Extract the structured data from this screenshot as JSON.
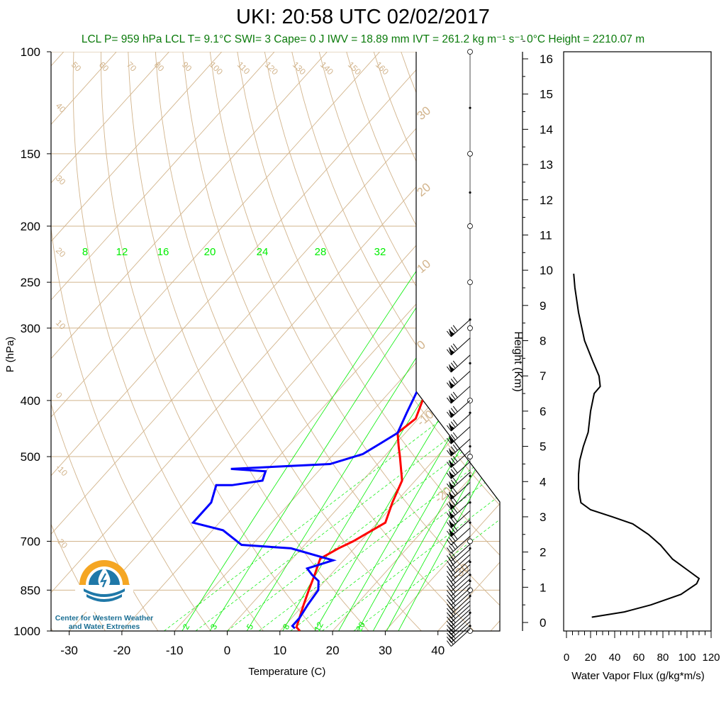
{
  "title": "UKI: 20:58 UTC 02/02/2017",
  "subtitle": "LCL P= 959 hPa  LCL T= 9.1°C  SWI= 3  Cape= 0 J  IWV = 18.89 mm  IVT = 261.2 kg m⁻¹ s⁻¹  0°C Height = 2210.07 m",
  "logo": {
    "line1": "Center for Western Weather",
    "line2": "and Water Extremes"
  },
  "colors": {
    "temperature": "#ff0000",
    "dewpoint": "#0000ff",
    "dry_adiabat": "#d2b48c",
    "mixing_ratio": "#00ee00",
    "isobar": "#d2b48c"
  },
  "chart_data": [
    {
      "type": "line",
      "name": "skew-T",
      "xlabel": "Temperature (C)",
      "ylabel": "P (hPa)",
      "xlim": [
        -35,
        50
      ],
      "ylim": [
        1000,
        100
      ],
      "y_scale": "log",
      "x_ticks": [
        -30,
        -20,
        -10,
        0,
        10,
        20,
        30,
        40
      ],
      "y_ticks": [
        100,
        150,
        200,
        250,
        300,
        400,
        500,
        700,
        850,
        1000
      ],
      "isotherm_labels": [
        50,
        60,
        70,
        80,
        90,
        100,
        110,
        120,
        130,
        140,
        150,
        160
      ],
      "isotherm_left_labels": [
        40,
        30,
        20,
        10,
        0,
        -10,
        -20
      ],
      "dry_adiabat_labels": [
        30,
        20,
        10,
        0,
        -10,
        -20,
        -30
      ],
      "mixing_ratio_top_labels": [
        8,
        12,
        16,
        20,
        24,
        28,
        32
      ],
      "mixing_ratio_bottom_labels": [
        2,
        3,
        5,
        8,
        12,
        20
      ],
      "series": [
        {
          "values": [
            [
              13.8,
              1000
            ],
            [
              12.5,
              985
            ],
            [
              11.5,
              950
            ],
            [
              10,
              900
            ],
            [
              8.5,
              850
            ],
            [
              7,
              800
            ],
            [
              5.3,
              750
            ],
            [
              7,
              720
            ],
            [
              8.6,
              700
            ],
            [
              11.5,
              650
            ],
            [
              9.4,
              600
            ],
            [
              7.5,
              550
            ],
            [
              3,
              500
            ],
            [
              1,
              480
            ],
            [
              -1.5,
              455
            ],
            [
              -0.5,
              430
            ],
            [
              -2.3,
              400
            ],
            [
              -4.2,
              350
            ],
            [
              -6.5,
              300
            ],
            [
              -8.5,
              270
            ]
          ]
        },
        {
          "values": [
            [
              12.4,
              990
            ],
            [
              11.5,
              980
            ],
            [
              11.5,
              950
            ],
            [
              10.8,
              900
            ],
            [
              10.3,
              850
            ],
            [
              8.8,
              820
            ],
            [
              6.5,
              800
            ],
            [
              4.5,
              780
            ],
            [
              8,
              755
            ],
            [
              -2,
              720
            ],
            [
              -12,
              710
            ],
            [
              -18,
              670
            ],
            [
              -25,
              650
            ],
            [
              -25,
              600
            ],
            [
              -27,
              560
            ],
            [
              -24,
              560
            ],
            [
              -19,
              550
            ],
            [
              -20,
              530
            ],
            [
              -27,
              525
            ],
            [
              -9,
              515
            ],
            [
              -4.5,
              495
            ],
            [
              -3,
              475
            ],
            [
              -1.5,
              455
            ],
            [
              -3.2,
              420
            ],
            [
              -5.2,
              380
            ],
            [
              -6.5,
              350
            ],
            [
              -7.5,
              320
            ],
            [
              -10,
              300
            ],
            [
              -11,
              280
            ],
            [
              -11,
              270
            ]
          ]
        }
      ]
    },
    {
      "type": "line",
      "name": "water-vapor-flux",
      "xlabel": "Water Vapor Flux (g/kg*m/s)",
      "ylabel": "Height (Km)",
      "xlim": [
        0,
        120
      ],
      "ylim": [
        0,
        16
      ],
      "x_ticks": [
        0,
        20,
        40,
        60,
        80,
        100,
        120
      ],
      "y_ticks": [
        0,
        1,
        2,
        3,
        4,
        5,
        6,
        7,
        8,
        9,
        10,
        11,
        12,
        13,
        14,
        15,
        16
      ],
      "series": [
        {
          "values": [
            [
              21,
              0.15
            ],
            [
              48,
              0.3
            ],
            [
              70,
              0.5
            ],
            [
              95,
              0.8
            ],
            [
              108,
              1.1
            ],
            [
              110,
              1.25
            ],
            [
              100,
              1.5
            ],
            [
              88,
              1.8
            ],
            [
              78,
              2.2
            ],
            [
              68,
              2.5
            ],
            [
              55,
              2.8
            ],
            [
              38,
              3.0
            ],
            [
              20,
              3.2
            ],
            [
              12,
              3.4
            ],
            [
              10,
              3.8
            ],
            [
              10,
              4.2
            ],
            [
              11,
              4.6
            ],
            [
              14,
              5.0
            ],
            [
              18,
              5.4
            ],
            [
              20,
              6.0
            ],
            [
              23,
              6.5
            ],
            [
              28,
              6.7
            ],
            [
              27,
              7.0
            ],
            [
              22,
              7.4
            ],
            [
              15,
              8.0
            ],
            [
              10,
              8.8
            ],
            [
              7,
              9.5
            ],
            [
              6,
              9.9
            ]
          ]
        }
      ]
    }
  ]
}
